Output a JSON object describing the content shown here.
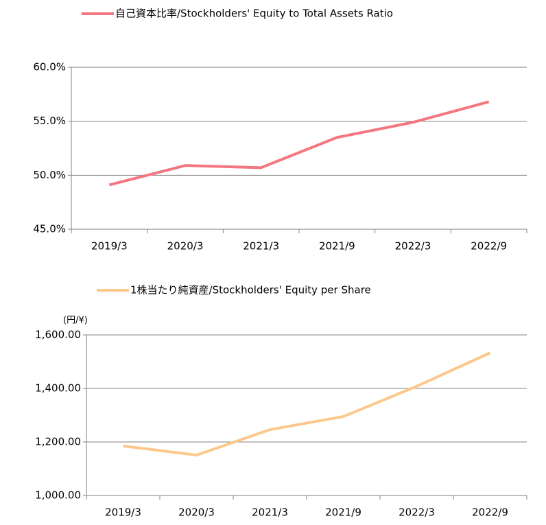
{
  "chart_data": [
    {
      "type": "line",
      "categories": [
        "2019/3",
        "2020/3",
        "2021/3",
        "2021/9",
        "2022/3",
        "2022/9"
      ],
      "series": [
        {
          "name": "自己資本比率/Stockholders' Equity to Total Assets Ratio",
          "color": "#f4777f",
          "values": [
            49.1,
            50.9,
            50.7,
            53.5,
            54.9,
            56.8
          ]
        }
      ],
      "ylim": [
        45,
        60
      ],
      "yticks": [
        {
          "value": 45,
          "label": "45.0%"
        },
        {
          "value": 50,
          "label": "50.0%"
        },
        {
          "value": 55,
          "label": "55.0%"
        },
        {
          "value": 60,
          "label": "60.0%"
        }
      ],
      "grid": true,
      "legend": "top"
    },
    {
      "type": "line",
      "categories": [
        "2019/3",
        "2020/3",
        "2021/3",
        "2021/9",
        "2022/3",
        "2022/9"
      ],
      "series": [
        {
          "name": "1株当たり純資産/Stockholders' Equity per Share",
          "color": "#fcc88c",
          "values": [
            1185,
            1151,
            1246,
            1295,
            1408,
            1533
          ]
        }
      ],
      "y_axis_label": "(円/¥)",
      "ylim": [
        1000,
        1600
      ],
      "yticks": [
        {
          "value": 1000,
          "label": "1,000.00"
        },
        {
          "value": 1200,
          "label": "1,200.00"
        },
        {
          "value": 1400,
          "label": "1,400.00"
        },
        {
          "value": 1600,
          "label": "1,600.00"
        }
      ],
      "grid": true,
      "legend": "top"
    }
  ]
}
